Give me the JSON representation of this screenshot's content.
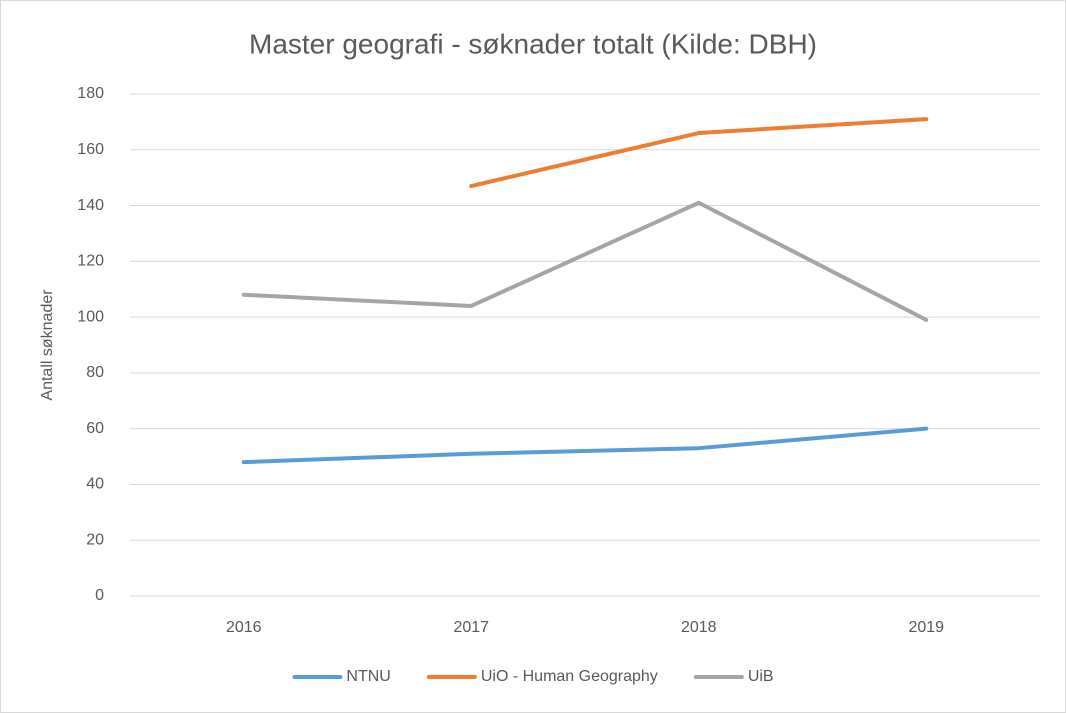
{
  "chart_data": {
    "type": "line",
    "title": "Master geografi - søknader totalt (Kilde: DBH)",
    "y_label": "Antall søknader",
    "categories": [
      "2016",
      "2017",
      "2018",
      "2019"
    ],
    "series": [
      {
        "name": "NTNU",
        "color": "#5b9bd5",
        "values": [
          48,
          51,
          53,
          60
        ]
      },
      {
        "name": "UiO - Human Geography",
        "color": "#ed7d31",
        "values": [
          null,
          147,
          166,
          171
        ]
      },
      {
        "name": "UiB",
        "color": "#a5a5a5",
        "values": [
          108,
          104,
          141,
          99
        ]
      }
    ],
    "ylim": [
      0,
      180
    ],
    "yticks": [
      0,
      20,
      40,
      60,
      80,
      100,
      120,
      140,
      160,
      180
    ],
    "grid": true,
    "legend": "bottom"
  }
}
